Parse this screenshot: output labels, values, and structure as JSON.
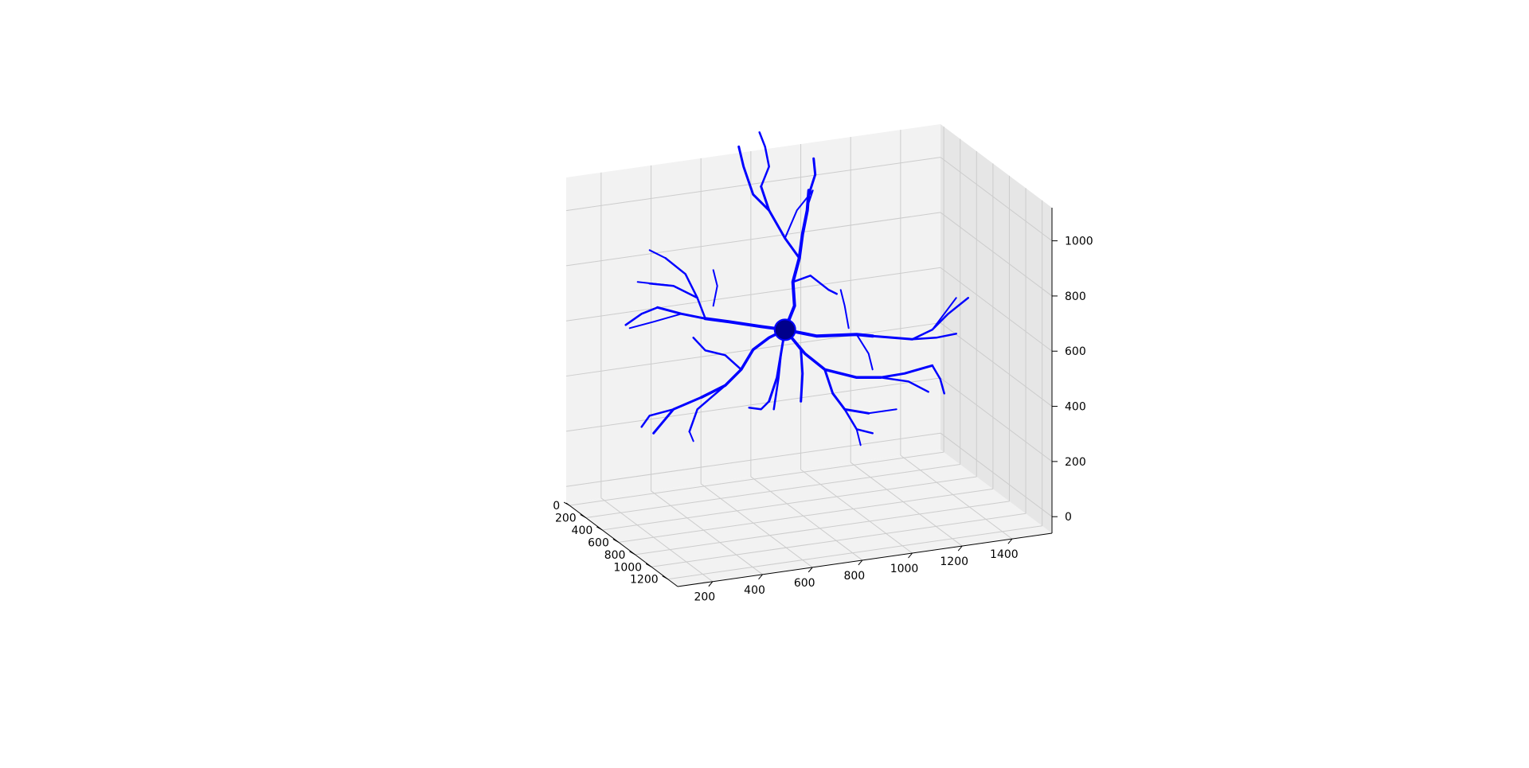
{
  "chart_data": {
    "type": "3d-line",
    "title": "",
    "xlabel": "",
    "ylabel": "",
    "zlabel": "",
    "x_ticks": [
      200,
      400,
      600,
      800,
      1000,
      1200,
      1400
    ],
    "y_ticks": [
      0,
      200,
      400,
      600,
      800,
      1000,
      1200
    ],
    "z_ticks": [
      0,
      200,
      400,
      600,
      800,
      1000
    ],
    "xlim": [
      60,
      1560
    ],
    "ylim": [
      -40,
      1320
    ],
    "zlim": [
      -60,
      1120
    ],
    "grid": true,
    "series_color": "#0000ff",
    "soma_color": "#00008b",
    "soma": {
      "x": 720,
      "y": 620,
      "z": 630
    }
  }
}
